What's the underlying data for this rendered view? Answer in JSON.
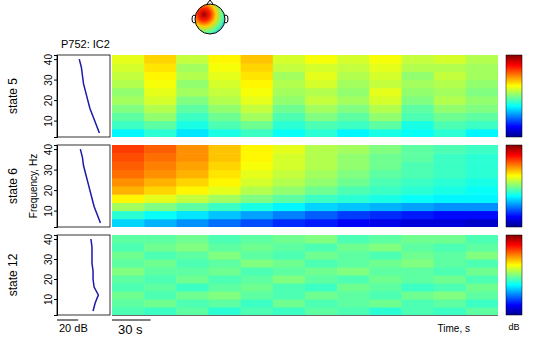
{
  "chart_data": {
    "type": "heatmap",
    "title": "P752: IC2",
    "x_label": "Time, s",
    "y_label": "Frequency, Hz",
    "colorbar_label": "dB",
    "colorbar_range": [
      -3,
      3
    ],
    "ylim": [
      2,
      42
    ],
    "yticks": [
      10,
      20,
      30,
      40
    ],
    "xlim": [
      0,
      300
    ],
    "frequency_edges": [
      2,
      6,
      10,
      14,
      18,
      22,
      26,
      30,
      34,
      38,
      42
    ],
    "time_edges": [
      0,
      25,
      50,
      75,
      100,
      125,
      150,
      175,
      200,
      225,
      250,
      275,
      300
    ],
    "time_scale": {
      "value": 30,
      "label": "30 s"
    },
    "spectrum_xlim": [
      0,
      50
    ],
    "spectrum_scale": {
      "value": 20,
      "label": "20 dB"
    },
    "panels": [
      {
        "name": "state 5",
        "spectrum": {
          "frequencies": [
            4,
            8,
            12,
            16,
            20,
            24,
            28,
            32,
            36,
            40
          ],
          "values": [
            40,
            37,
            34,
            31,
            29,
            27,
            25,
            24,
            23,
            21
          ]
        },
        "cells": [
          [
            -0.8,
            -0.5,
            -0.9,
            -0.6,
            -0.4,
            -0.7,
            -0.5,
            -0.8,
            -0.6,
            -0.7,
            -0.5,
            -0.8
          ],
          [
            -0.4,
            -0.2,
            -0.6,
            -0.3,
            -0.1,
            -0.5,
            -0.3,
            -0.4,
            -0.2,
            -0.6,
            -0.3,
            -0.4
          ],
          [
            -0.2,
            0.1,
            -0.4,
            -0.1,
            0.2,
            -0.3,
            0.0,
            -0.2,
            0.1,
            -0.3,
            -0.1,
            -0.2
          ],
          [
            0.0,
            0.3,
            -0.2,
            0.1,
            0.4,
            -0.1,
            0.2,
            0.0,
            0.3,
            -0.2,
            0.1,
            0.0
          ],
          [
            0.2,
            0.5,
            0.0,
            0.3,
            0.6,
            0.1,
            0.4,
            0.2,
            0.5,
            0.0,
            0.3,
            0.1
          ],
          [
            0.1,
            0.6,
            0.2,
            0.4,
            0.7,
            0.2,
            0.3,
            0.1,
            0.6,
            0.1,
            0.2,
            0.0
          ],
          [
            0.3,
            0.7,
            0.1,
            0.5,
            0.8,
            0.3,
            0.5,
            0.2,
            0.4,
            0.2,
            0.3,
            0.1
          ],
          [
            0.4,
            0.8,
            0.3,
            0.6,
            0.9,
            0.2,
            0.6,
            0.3,
            0.5,
            0.1,
            0.4,
            0.2
          ],
          [
            0.5,
            0.9,
            0.2,
            0.7,
            1.0,
            0.4,
            0.5,
            0.4,
            0.6,
            0.3,
            0.3,
            0.2
          ],
          [
            0.6,
            1.0,
            0.4,
            0.8,
            1.1,
            0.5,
            0.7,
            0.5,
            0.7,
            0.4,
            0.5,
            0.3
          ]
        ]
      },
      {
        "name": "state 6",
        "spectrum": {
          "frequencies": [
            4,
            8,
            12,
            16,
            20,
            24,
            28,
            32,
            36,
            40
          ],
          "values": [
            41,
            38,
            35,
            33,
            31,
            29,
            27,
            25,
            24,
            22
          ]
        },
        "cells": [
          [
            -1.0,
            -1.2,
            -1.4,
            -1.6,
            -1.8,
            -2.0,
            -2.1,
            -2.3,
            -2.4,
            -2.5,
            -2.5,
            -2.6
          ],
          [
            -0.5,
            -0.7,
            -0.9,
            -1.1,
            -1.3,
            -1.5,
            -1.7,
            -1.9,
            -2.0,
            -2.1,
            -2.2,
            -2.2
          ],
          [
            0.2,
            0.0,
            -0.2,
            -0.4,
            -0.6,
            -0.8,
            -1.0,
            -1.1,
            -1.2,
            -1.3,
            -1.4,
            -1.4
          ],
          [
            0.8,
            0.6,
            0.4,
            0.2,
            0.0,
            -0.2,
            -0.4,
            -0.5,
            -0.6,
            -0.7,
            -0.8,
            -0.8
          ],
          [
            1.2,
            1.0,
            0.8,
            0.6,
            0.3,
            0.1,
            -0.1,
            -0.3,
            -0.4,
            -0.5,
            -0.6,
            -0.7
          ],
          [
            1.4,
            1.2,
            1.0,
            0.8,
            0.5,
            0.3,
            0.1,
            -0.1,
            -0.3,
            -0.4,
            -0.5,
            -0.6
          ],
          [
            1.6,
            1.4,
            1.2,
            0.9,
            0.6,
            0.4,
            0.2,
            0.0,
            -0.2,
            -0.3,
            -0.4,
            -0.5
          ],
          [
            1.7,
            1.5,
            1.3,
            1.0,
            0.7,
            0.5,
            0.3,
            0.1,
            -0.1,
            -0.3,
            -0.4,
            -0.5
          ],
          [
            1.8,
            1.6,
            1.4,
            1.1,
            0.8,
            0.5,
            0.3,
            0.1,
            -0.1,
            -0.2,
            -0.4,
            -0.5
          ],
          [
            1.9,
            1.7,
            1.4,
            1.1,
            0.8,
            0.6,
            0.3,
            0.2,
            0.0,
            -0.2,
            -0.3,
            -0.4
          ]
        ]
      },
      {
        "name": "state 12",
        "spectrum": {
          "frequencies": [
            4,
            8,
            12,
            16,
            20,
            24,
            28,
            32,
            36,
            40
          ],
          "values": [
            34,
            36,
            39,
            35,
            34,
            34,
            33,
            33,
            33,
            32
          ]
        },
        "cells": [
          [
            -0.3,
            -0.4,
            -0.2,
            -0.5,
            -0.3,
            -0.4,
            -0.2,
            -0.3,
            -0.5,
            -0.3,
            -0.4,
            -0.2
          ],
          [
            -0.2,
            -0.1,
            -0.3,
            -0.2,
            -0.4,
            -0.1,
            -0.3,
            -0.2,
            -0.1,
            -0.3,
            -0.2,
            -0.4
          ],
          [
            -0.1,
            -0.3,
            -0.1,
            0.0,
            -0.2,
            -0.3,
            -0.1,
            -0.2,
            -0.3,
            -0.1,
            0.0,
            -0.2
          ],
          [
            -0.3,
            -0.2,
            -0.4,
            -0.2,
            -0.1,
            -0.3,
            -0.4,
            -0.1,
            -0.2,
            -0.4,
            -0.3,
            -0.1
          ],
          [
            -0.2,
            -0.3,
            -0.1,
            -0.3,
            -0.2,
            0.0,
            -0.2,
            -0.3,
            -0.1,
            -0.2,
            -0.1,
            -0.3
          ],
          [
            0.0,
            -0.2,
            -0.2,
            -0.1,
            -0.3,
            -0.2,
            -0.1,
            0.0,
            -0.2,
            -0.2,
            -0.3,
            -0.1
          ],
          [
            -0.2,
            -0.1,
            -0.3,
            -0.2,
            0.0,
            -0.1,
            -0.3,
            -0.2,
            -0.1,
            0.0,
            -0.2,
            -0.3
          ],
          [
            -0.1,
            -0.3,
            -0.2,
            0.0,
            -0.2,
            -0.3,
            -0.1,
            -0.2,
            -0.3,
            -0.1,
            -0.2,
            0.0
          ],
          [
            -0.3,
            -0.1,
            0.0,
            -0.2,
            -0.1,
            -0.2,
            -0.3,
            -0.1,
            0.0,
            -0.2,
            -0.3,
            -0.2
          ],
          [
            -0.2,
            -0.2,
            -0.1,
            -0.3,
            -0.2,
            -0.1,
            0.0,
            -0.3,
            -0.2,
            -0.1,
            -0.1,
            -0.3
          ]
        ]
      }
    ]
  }
}
